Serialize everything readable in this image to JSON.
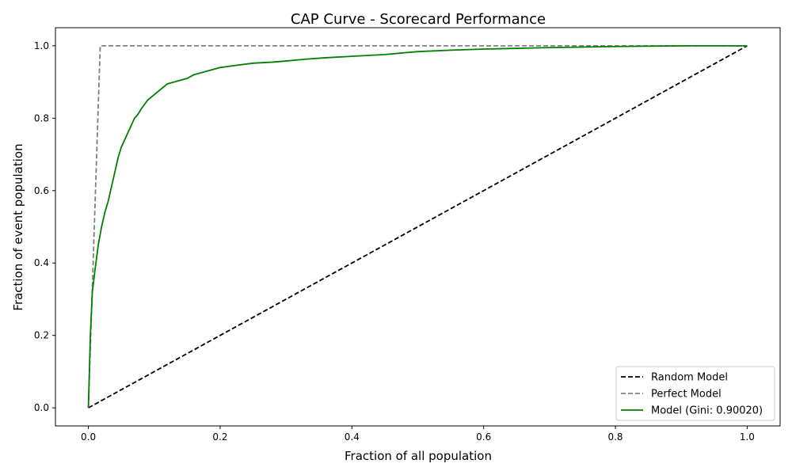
{
  "chart_data": {
    "type": "line",
    "title": "CAP Curve - Scorecard Performance",
    "xlabel": "Fraction of all population",
    "ylabel": "Fraction of event population",
    "xlim": [
      -0.05,
      1.05
    ],
    "ylim": [
      -0.05,
      1.05
    ],
    "xticks": [
      "0.0",
      "0.2",
      "0.4",
      "0.6",
      "0.8",
      "1.0"
    ],
    "yticks": [
      "0.0",
      "0.2",
      "0.4",
      "0.6",
      "0.8",
      "1.0"
    ],
    "grid": false,
    "legend_position": "lower-right",
    "series": [
      {
        "name": "Random Model",
        "color": "#000000",
        "dash": "dashed",
        "x": [
          0.0,
          1.0
        ],
        "y": [
          0.0,
          1.0
        ]
      },
      {
        "name": "Perfect Model",
        "color": "#808080",
        "dash": "dashed",
        "x": [
          0.0,
          0.018,
          1.0
        ],
        "y": [
          0.0,
          1.0,
          1.0
        ]
      },
      {
        "name": "Model (Gini: 0.90020)",
        "color": "#008000",
        "dash": "solid",
        "x": [
          0.0,
          0.003,
          0.006,
          0.01,
          0.015,
          0.02,
          0.025,
          0.03,
          0.035,
          0.04,
          0.045,
          0.05,
          0.055,
          0.06,
          0.065,
          0.07,
          0.075,
          0.08,
          0.09,
          0.1,
          0.11,
          0.12,
          0.13,
          0.14,
          0.15,
          0.16,
          0.18,
          0.2,
          0.22,
          0.25,
          0.28,
          0.3,
          0.33,
          0.36,
          0.4,
          0.45,
          0.5,
          0.55,
          0.6,
          0.7,
          0.8,
          0.9,
          1.0
        ],
        "y": [
          0.0,
          0.2,
          0.32,
          0.38,
          0.45,
          0.5,
          0.54,
          0.57,
          0.61,
          0.65,
          0.69,
          0.72,
          0.74,
          0.76,
          0.78,
          0.8,
          0.81,
          0.825,
          0.85,
          0.865,
          0.88,
          0.895,
          0.9,
          0.905,
          0.91,
          0.92,
          0.93,
          0.94,
          0.945,
          0.952,
          0.955,
          0.958,
          0.963,
          0.967,
          0.971,
          0.976,
          0.984,
          0.988,
          0.991,
          0.995,
          0.998,
          1.0,
          1.0
        ]
      }
    ]
  }
}
